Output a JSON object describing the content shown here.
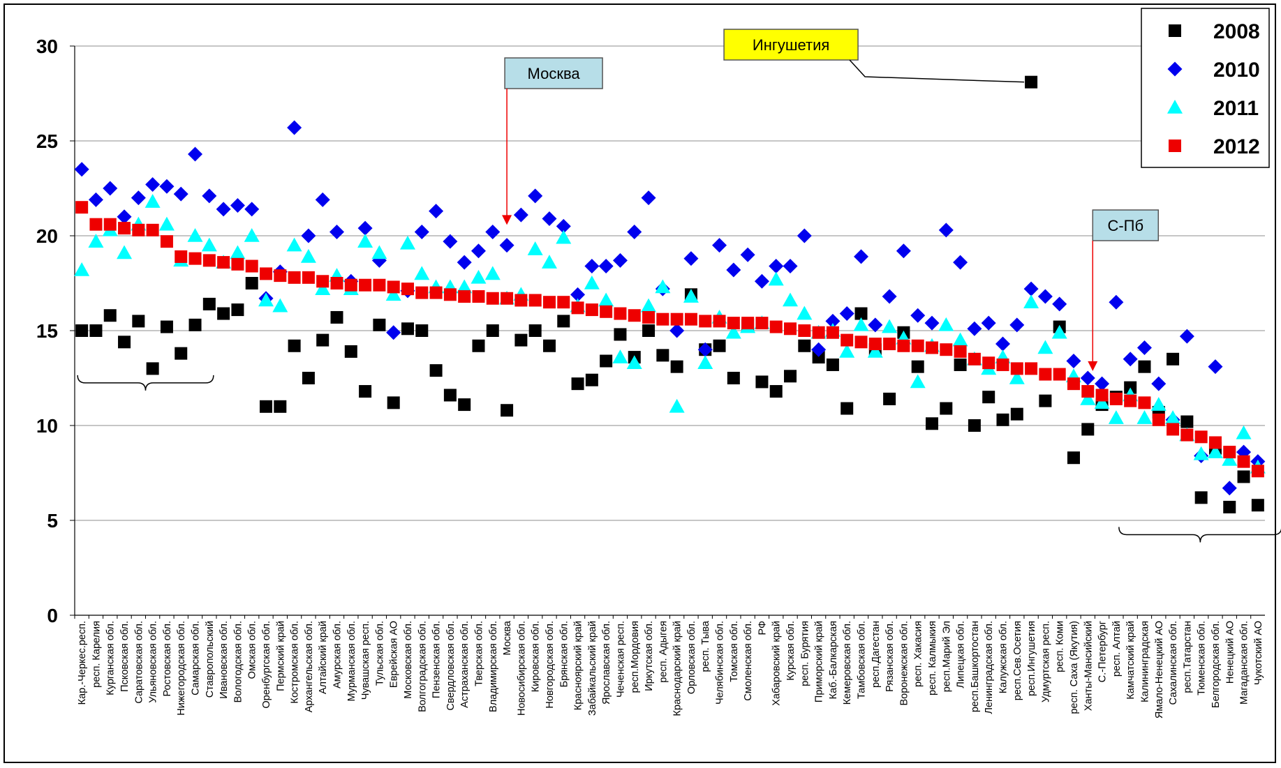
{
  "chart_data": {
    "type": "scatter",
    "ylim": [
      0,
      30
    ],
    "yticks": [
      "0",
      "5",
      "10",
      "15",
      "20",
      "25",
      "30"
    ],
    "grid": true,
    "legend_position": "top-right",
    "categories": [
      "Кар.-Черкес.респ.",
      "респ. Карелия",
      "Курганская обл.",
      "Псковская обл.",
      "Саратовская обл.",
      "Ульяновская обл.",
      "Ростовская обл.",
      "Нижегородская обл.",
      "Самарская обл.",
      "Ставропольский",
      "Ивановская обл.",
      "Вологодская обл.",
      "Омская обл.",
      "Оренбургская обл.",
      "Пермский край",
      "Костромская обл.",
      "Архангельская обл.",
      "Алтайский край",
      "Амурская обл.",
      "Мурманская обл.",
      "Чувашская респ.",
      "Тульская обл.",
      "Еврейская АО",
      "Московская обл.",
      "Волгоградская обл.",
      "Пензенская обл.",
      "Свердловская обл.",
      "Астраханская обл.",
      "Тверская обл.",
      "Владимирская обл.",
      "Москва",
      "Новосибирская обл.",
      "Кировская обл.",
      "Новгородская обл.",
      "Брянская обл.",
      "Красноярский край",
      "Забайкальский край",
      "Ярославская обл.",
      "Чеченская респ.",
      "респ.Мордовия",
      "Иркутская обл.",
      "респ. Адыгея",
      "Краснодарский край",
      "Орловская обл.",
      "респ. Тыва",
      "Челябинская обл.",
      "Томская обл.",
      "Смоленская обл.",
      "РФ",
      "Хабаровский край",
      "Курская обл.",
      "респ. Бурятия",
      "Приморский край",
      "Каб.-Балкарская",
      "Кемеровская обл.",
      "Тамбовская обл.",
      "респ.Дагестан",
      "Рязанская обл.",
      "Воронежская обл.",
      "респ. Хакасия",
      "респ. Калмыкия",
      "респ.Марий Эл",
      "Липецкая обл.",
      "респ.Башкортостан",
      "Ленинградская обл.",
      "Калужская обл.",
      "респ.Сев.Осетия",
      "респ.Ингушетия",
      "Удмуртская респ.",
      "респ. Коми",
      "респ. Саха (Якутия)",
      "Ханты-Мансийский",
      "С.-Петербург",
      "респ. Алтай",
      "Камчатский край",
      "Калининградская",
      "Ямало-Ненецкий АО",
      "Сахалинская обл.",
      "респ.Татарстан",
      "Тюменская обл.",
      "Белгородская обл.",
      "Ненецкий АО",
      "Магаданская обл.",
      "Чукотский АО"
    ],
    "series": [
      {
        "name": "2008",
        "marker": "square",
        "color": "#000000",
        "values": [
          15.0,
          15.0,
          15.8,
          14.4,
          15.5,
          13.0,
          15.2,
          13.8,
          15.3,
          16.4,
          15.9,
          16.1,
          17.5,
          11.0,
          11.0,
          14.2,
          12.5,
          14.5,
          15.7,
          13.9,
          11.8,
          15.3,
          11.2,
          15.1,
          15.0,
          12.9,
          11.6,
          11.1,
          14.2,
          15.0,
          10.8,
          14.5,
          15.0,
          14.2,
          15.5,
          12.2,
          12.4,
          13.4,
          14.8,
          13.6,
          15.0,
          13.7,
          13.1,
          16.9,
          14.0,
          14.2,
          12.5,
          15.3,
          12.3,
          11.8,
          12.6,
          14.2,
          13.6,
          13.2,
          10.9,
          15.9,
          14.0,
          11.4,
          14.9,
          13.1,
          10.1,
          10.9,
          13.2,
          10.0,
          11.5,
          10.3,
          10.6,
          28.1,
          11.3,
          15.2,
          8.3,
          9.8,
          11.1,
          11.5,
          12.0,
          13.1,
          10.7,
          13.5,
          10.2,
          6.2,
          8.8,
          5.7,
          7.3,
          5.8
        ]
      },
      {
        "name": "2010",
        "marker": "diamond",
        "color": "#0000EE",
        "values": [
          23.5,
          21.9,
          22.5,
          21.0,
          22.0,
          22.7,
          22.6,
          22.2,
          24.3,
          22.1,
          21.4,
          21.6,
          21.4,
          16.7,
          18.1,
          25.7,
          20.0,
          21.9,
          20.2,
          17.6,
          20.4,
          18.7,
          14.9,
          17.1,
          20.2,
          21.3,
          19.7,
          18.6,
          19.2,
          20.2,
          19.5,
          21.1,
          22.1,
          20.9,
          20.5,
          16.9,
          18.4,
          18.4,
          18.7,
          20.2,
          22.0,
          17.2,
          15.0,
          18.8,
          14.0,
          19.5,
          18.2,
          19.0,
          17.6,
          18.4,
          18.4,
          20.0,
          14.0,
          15.5,
          15.9,
          18.9,
          15.3,
          16.8,
          19.2,
          15.8,
          15.4,
          20.3,
          18.6,
          15.1,
          15.4,
          14.3,
          15.3,
          17.2,
          16.8,
          16.4,
          13.4,
          12.5,
          12.2,
          16.5,
          13.5,
          14.1,
          12.2,
          10.3,
          14.7,
          8.4,
          13.1,
          6.7,
          8.6,
          8.1
        ]
      },
      {
        "name": "2011",
        "marker": "triangle",
        "color": "#00FFFF",
        "values": [
          18.2,
          19.7,
          20.3,
          19.1,
          20.6,
          21.8,
          20.6,
          18.7,
          20.0,
          19.5,
          18.6,
          19.1,
          20.0,
          16.6,
          16.3,
          19.5,
          18.9,
          17.2,
          17.9,
          17.2,
          19.7,
          19.1,
          16.9,
          19.6,
          18.0,
          17.3,
          17.3,
          17.3,
          17.8,
          18.0,
          16.7,
          16.9,
          19.3,
          18.6,
          19.9,
          16.3,
          17.5,
          16.6,
          13.6,
          13.3,
          16.3,
          17.3,
          11.0,
          16.8,
          13.3,
          15.7,
          14.9,
          15.2,
          15.4,
          17.7,
          16.6,
          15.9,
          14.9,
          15.0,
          13.9,
          15.3,
          13.9,
          15.2,
          14.6,
          12.3,
          14.2,
          15.3,
          14.5,
          13.5,
          13.0,
          13.6,
          12.5,
          16.5,
          14.1,
          14.9,
          12.6,
          11.4,
          11.2,
          10.4,
          11.6,
          10.4,
          11.1,
          10.4,
          9.5,
          8.5,
          8.6,
          8.2,
          9.6,
          7.8
        ]
      },
      {
        "name": "2012",
        "marker": "square",
        "color": "#EE0000",
        "values": [
          21.5,
          20.6,
          20.6,
          20.4,
          20.3,
          20.3,
          19.7,
          18.9,
          18.8,
          18.7,
          18.6,
          18.5,
          18.4,
          18.0,
          17.9,
          17.8,
          17.8,
          17.6,
          17.5,
          17.4,
          17.4,
          17.4,
          17.3,
          17.2,
          17.0,
          17.0,
          16.9,
          16.8,
          16.8,
          16.7,
          16.7,
          16.6,
          16.6,
          16.5,
          16.5,
          16.2,
          16.1,
          16.0,
          15.9,
          15.8,
          15.7,
          15.6,
          15.6,
          15.6,
          15.5,
          15.5,
          15.4,
          15.4,
          15.4,
          15.2,
          15.1,
          15.0,
          14.9,
          14.9,
          14.5,
          14.4,
          14.3,
          14.3,
          14.2,
          14.2,
          14.1,
          14.0,
          13.9,
          13.5,
          13.3,
          13.2,
          13.0,
          13.0,
          12.7,
          12.7,
          12.2,
          11.8,
          11.6,
          11.4,
          11.3,
          11.2,
          10.3,
          9.8,
          9.5,
          9.4,
          9.1,
          8.6,
          8.1,
          7.6
        ]
      }
    ],
    "annotations": [
      {
        "label": "Москва",
        "category_index": 30,
        "y": 20.5,
        "box_color": "#B7DEE8"
      },
      {
        "label": "Ингушетия",
        "category_index": 67,
        "y": 28.1,
        "box_color": "#FFFF00"
      },
      {
        "label": "С-Пб",
        "category_index": 71,
        "y": 12.8,
        "box_color": "#B7DEE8"
      }
    ]
  }
}
